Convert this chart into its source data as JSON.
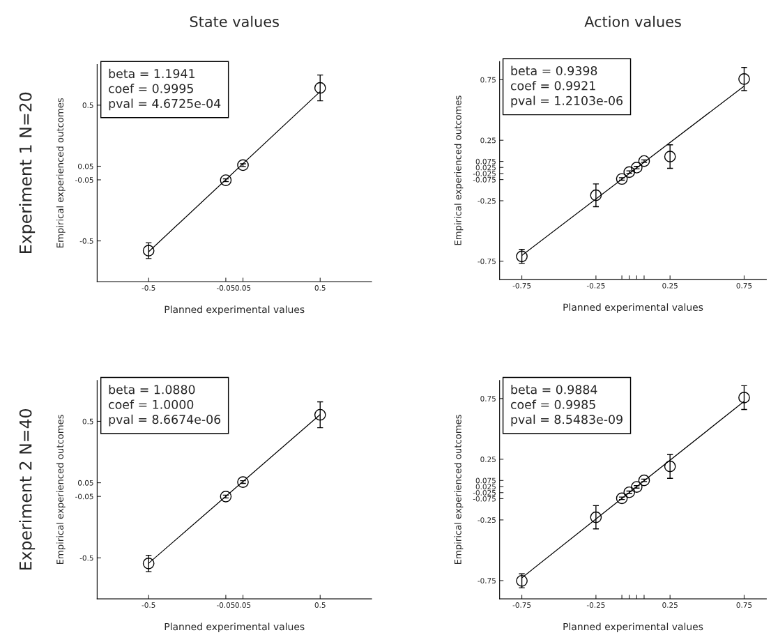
{
  "chart_data": [
    {
      "type": "scatter",
      "title": "State values",
      "xlabel": "Planned experimental values",
      "ylabel": "Empirical experienced outcomes",
      "marker": "circle",
      "grid": false,
      "legend": false,
      "xlim": [
        -0.8,
        0.8
      ],
      "ylim": [
        -0.8,
        0.8
      ],
      "xticks": [
        -0.5,
        -0.05,
        0.05,
        0.5
      ],
      "yticks": [
        -0.5,
        -0.05,
        0.05,
        0.5
      ],
      "annotations": [
        "beta = 1.1941\ncoef = 0.9995\npval = 4.6725e-04",
        "Experiment 1 N=20"
      ],
      "series": [
        {
          "color": "#000000",
          "x": [
            -0.5,
            -0.05,
            0.05,
            0.5
          ],
          "values": [
            -0.572,
            -0.053,
            0.058,
            0.627
          ],
          "errors": [
            0.058,
            0.01,
            0.01,
            0.095
          ]
        },
        {
          "type": "line",
          "marker": "none",
          "color": "#000000",
          "x": [
            -0.5,
            0.5
          ],
          "values": [
            -0.58,
            0.6
          ]
        }
      ]
    },
    {
      "type": "scatter",
      "title": "Action values",
      "xlabel": "Planned experimental values",
      "ylabel": "Empirical experienced outcomes",
      "marker": "circle",
      "grid": false,
      "legend": false,
      "xlim": [
        -0.9,
        0.9
      ],
      "ylim": [
        -0.9,
        0.9
      ],
      "xticks": [
        -0.75,
        -0.25,
        {
          "value": -0.075,
          "label": null
        },
        {
          "value": -0.025,
          "label": null
        },
        {
          "value": 0.025,
          "label": null
        },
        {
          "value": 0.075,
          "label": null
        },
        0.25,
        0.75
      ],
      "yticks": [
        -0.75,
        -0.25,
        -0.075,
        -0.025,
        0.025,
        0.075,
        0.25,
        0.75
      ],
      "annotations": [
        "beta = 0.9398\ncoef = 0.9921\npval = 1.2103e-06"
      ],
      "series": [
        {
          "color": "#000000",
          "x": [
            -0.75,
            -0.25,
            -0.075,
            -0.025,
            0.025,
            0.075,
            0.25,
            0.75
          ],
          "values": [
            -0.71,
            -0.205,
            -0.07,
            -0.013,
            0.024,
            0.078,
            0.115,
            0.756
          ],
          "errors": [
            0.058,
            0.094,
            0.01,
            0.01,
            0.01,
            0.01,
            0.097,
            0.096
          ]
        },
        {
          "type": "line",
          "marker": "none",
          "color": "#000000",
          "x": [
            -0.75,
            0.75
          ],
          "values": [
            -0.702,
            0.698
          ]
        }
      ]
    },
    {
      "type": "scatter",
      "xlabel": "Planned experimental values",
      "ylabel": "Empirical experienced outcomes",
      "marker": "circle",
      "grid": false,
      "legend": false,
      "xlim": [
        -0.8,
        0.8
      ],
      "ylim": [
        -0.8,
        0.8
      ],
      "xticks": [
        -0.5,
        -0.05,
        0.05,
        0.5
      ],
      "yticks": [
        -0.5,
        -0.05,
        0.05,
        0.5
      ],
      "annotations": [
        "beta = 1.0880\ncoef = 1.0000\npval = 8.6674e-06",
        "Experiment 2 N=40"
      ],
      "series": [
        {
          "color": "#000000",
          "x": [
            -0.5,
            -0.05,
            0.05,
            0.5
          ],
          "values": [
            -0.541,
            -0.051,
            0.055,
            0.548
          ],
          "errors": [
            0.06,
            0.01,
            0.01,
            0.095
          ]
        },
        {
          "type": "line",
          "marker": "none",
          "color": "#000000",
          "x": [
            -0.5,
            0.5
          ],
          "values": [
            -0.54,
            0.55
          ]
        }
      ]
    },
    {
      "type": "scatter",
      "xlabel": "Planned experimental values",
      "ylabel": "Empirical experienced outcomes",
      "marker": "circle",
      "grid": false,
      "legend": false,
      "xlim": [
        -0.9,
        0.9
      ],
      "ylim": [
        -0.9,
        0.9
      ],
      "xticks": [
        -0.75,
        -0.25,
        {
          "value": -0.075,
          "label": null
        },
        {
          "value": -0.025,
          "label": null
        },
        {
          "value": 0.025,
          "label": null
        },
        {
          "value": 0.075,
          "label": null
        },
        0.25,
        0.75
      ],
      "yticks": [
        -0.75,
        -0.25,
        -0.075,
        -0.025,
        0.025,
        0.075,
        0.25,
        0.75
      ],
      "annotations": [
        "beta = 0.9884\ncoef = 0.9985\npval = 8.5483e-09"
      ],
      "series": [
        {
          "color": "#000000",
          "x": [
            -0.75,
            -0.25,
            -0.075,
            -0.025,
            0.025,
            0.075,
            0.25,
            0.75
          ],
          "values": [
            -0.752,
            -0.228,
            -0.072,
            -0.022,
            0.022,
            0.076,
            0.191,
            0.758
          ],
          "errors": [
            0.058,
            0.096,
            0.01,
            0.01,
            0.01,
            0.01,
            0.098,
            0.098
          ]
        },
        {
          "type": "line",
          "marker": "none",
          "color": "#000000",
          "x": [
            -0.75,
            0.75
          ],
          "values": [
            -0.727,
            0.727
          ]
        }
      ]
    }
  ]
}
